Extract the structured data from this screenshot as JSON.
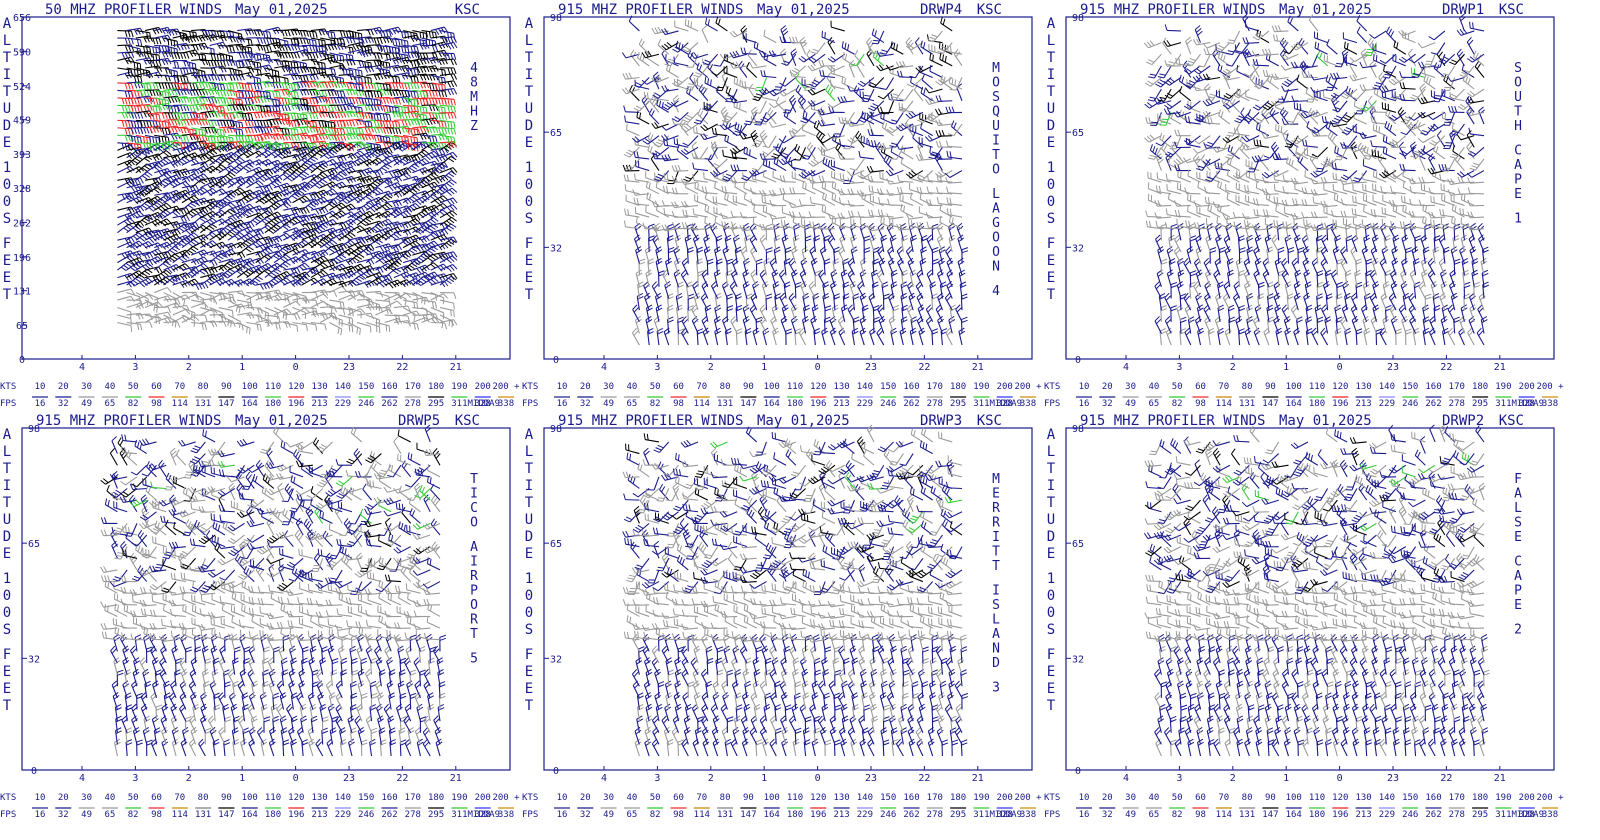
{
  "colors": {
    "frame": "#1a1a8c",
    "speed_bins": [
      "#1a1a8c",
      "#1a1a8c",
      "#9a9a9a",
      "#9a9a9a",
      "#33cc33",
      "#ee2222",
      "#cc8800",
      "#808080",
      "#000000",
      "#1a1a8c",
      "#33cc33",
      "#ee2222",
      "#1a1a8c",
      "#8888ff",
      "#33cc33",
      "#1a1a8c",
      "#9a9a9a",
      "#000000",
      "#33cc33",
      "#3333ff",
      "#cc8800"
    ]
  },
  "legend": {
    "kts_label": "KTS",
    "fps_label": "FPS",
    "kts": [
      "10",
      "20",
      "30",
      "40",
      "50",
      "60",
      "70",
      "80",
      "90",
      "100",
      "110",
      "120",
      "130",
      "140",
      "150",
      "160",
      "170",
      "180",
      "190",
      "200",
      "200 +"
    ],
    "fps": [
      "16",
      "32",
      "49",
      "65",
      "82",
      "98",
      "114",
      "131",
      "147",
      "164",
      "180",
      "196",
      "213",
      "229",
      "246",
      "262",
      "278",
      "295",
      "311",
      "328",
      "338"
    ],
    "code": "MIDDA9"
  },
  "axis": {
    "ylabel": "ALTITUDE 100S FEET",
    "x_ticks": [
      "4",
      "3",
      "2",
      "1",
      "0",
      "23",
      "22",
      "21"
    ]
  },
  "panels": [
    {
      "title": "50 MHZ PROFILER WINDS",
      "date": "May 01,2025",
      "station": "KSC",
      "site_id": "",
      "site_name": "48MHZ",
      "y_ticks": [
        "656",
        "590",
        "524",
        "459",
        "393",
        "328",
        "262",
        "196",
        "131",
        "65",
        "0"
      ],
      "y_max": 656,
      "chart_data": {
        "type": "wind_barbs",
        "title": "50 MHZ PROFILER WINDS",
        "xlabel": "",
        "ylabel": "ALTITUDE 100S FEET",
        "x_range_hours": [
          4,
          21
        ],
        "ylim": [
          0,
          656
        ],
        "data_extent": {
          "hour_start": 3.0,
          "hour_end": 21.8,
          "alt_min": 70,
          "alt_max": 630
        }
      }
    },
    {
      "title": "915 MHZ PROFILER WINDS",
      "date": "May 01,2025",
      "station": "KSC",
      "site_id": "DRWP4",
      "site_name": "MOSQUITO LAGOON 4",
      "y_ticks": [
        "98",
        "65",
        "32",
        "0"
      ],
      "y_max": 98,
      "chart_data": {
        "type": "wind_barbs",
        "title": "915 MHZ PROFILER WINDS",
        "xlabel": "",
        "ylabel": "ALTITUDE 100S FEET",
        "x_range_hours": [
          4,
          21
        ],
        "ylim": [
          0,
          98
        ],
        "data_extent": {
          "hour_start": 3.0,
          "hour_end": 21.1,
          "alt_min": 4,
          "alt_max": 94
        }
      }
    },
    {
      "title": "915 MHZ PROFILER WINDS",
      "date": "May 01,2025",
      "station": "KSC",
      "site_id": "DRWP1",
      "site_name": "SOUTH CAPE 1",
      "y_ticks": [
        "98",
        "65",
        "32",
        "0"
      ],
      "y_max": 98,
      "chart_data": {
        "type": "wind_barbs",
        "title": "915 MHZ PROFILER WINDS",
        "xlabel": "",
        "ylabel": "ALTITUDE 100S FEET",
        "x_range_hours": [
          4,
          21
        ],
        "ylim": [
          0,
          98
        ],
        "data_extent": {
          "hour_start": 3.0,
          "hour_end": 21.1,
          "alt_min": 4,
          "alt_max": 94
        }
      }
    },
    {
      "title": "915 MHZ PROFILER WINDS",
      "date": "May 01,2025",
      "station": "KSC",
      "site_id": "DRWP5",
      "site_name": "TICO AIRPORT 5",
      "y_ticks": [
        "98",
        "65",
        "32",
        "0"
      ],
      "y_max": 98,
      "chart_data": {
        "type": "wind_barbs",
        "title": "915 MHZ PROFILER WINDS",
        "xlabel": "",
        "ylabel": "ALTITUDE 100S FEET",
        "x_range_hours": [
          4,
          21
        ],
        "ylim": [
          0,
          98
        ],
        "data_extent": {
          "hour_start": 3.0,
          "hour_end": 21.1,
          "alt_min": 4,
          "alt_max": 94
        }
      }
    },
    {
      "title": "915 MHZ PROFILER WINDS",
      "date": "May 01,2025",
      "station": "KSC",
      "site_id": "DRWP3",
      "site_name": "MERRITT ISLAND 3",
      "y_ticks": [
        "98",
        "65",
        "32",
        "0"
      ],
      "y_max": 98,
      "chart_data": {
        "type": "wind_barbs",
        "title": "915 MHZ PROFILER WINDS",
        "xlabel": "",
        "ylabel": "ALTITUDE 100S FEET",
        "x_range_hours": [
          4,
          21
        ],
        "ylim": [
          0,
          98
        ],
        "data_extent": {
          "hour_start": 3.0,
          "hour_end": 21.1,
          "alt_min": 4,
          "alt_max": 94
        }
      }
    },
    {
      "title": "915 MHZ PROFILER WINDS",
      "date": "May 01,2025",
      "station": "KSC",
      "site_id": "DRWP2",
      "site_name": "FALSE CAPE 2",
      "y_ticks": [
        "98",
        "65",
        "32",
        "0"
      ],
      "y_max": 98,
      "chart_data": {
        "type": "wind_barbs",
        "title": "915 MHZ PROFILER WINDS",
        "xlabel": "",
        "ylabel": "ALTITUDE 100S FEET",
        "x_range_hours": [
          4,
          21
        ],
        "ylim": [
          0,
          98
        ],
        "data_extent": {
          "hour_start": 3.0,
          "hour_end": 21.1,
          "alt_min": 4,
          "alt_max": 94
        }
      }
    }
  ]
}
